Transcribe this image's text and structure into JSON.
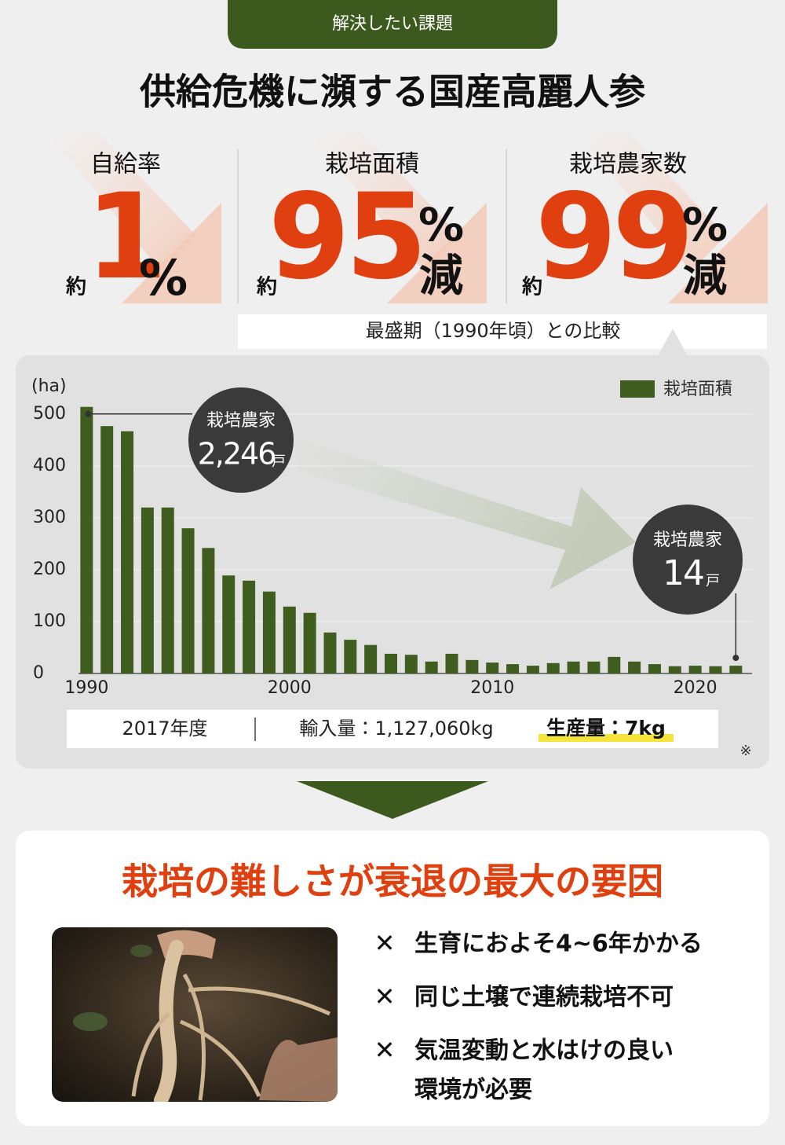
{
  "header": {
    "tab": "解決したい課題",
    "title": "供給危機に瀕する国産高麗人参"
  },
  "stats": [
    {
      "label": "自給率",
      "prefix": "約",
      "number": 1,
      "unit": "%"
    },
    {
      "label": "栽培面積",
      "prefix": "約",
      "number": 95,
      "unit": "%",
      "suffix": "減"
    },
    {
      "label": "栽培農家数",
      "prefix": "約",
      "number": 99,
      "unit": "%",
      "suffix": "減"
    }
  ],
  "stats_note": "最盛期（1990年頃）との比較",
  "chart_data": {
    "type": "bar",
    "y_label": "(ha)",
    "x": [
      1990,
      1991,
      1992,
      1993,
      1994,
      1995,
      1996,
      1997,
      1998,
      1999,
      2000,
      2001,
      2002,
      2003,
      2004,
      2005,
      2006,
      2007,
      2008,
      2009,
      2010,
      2011,
      2012,
      2013,
      2014,
      2015,
      2016,
      2017,
      2018,
      2019,
      2020,
      2021,
      2022
    ],
    "series": [
      {
        "name": "栽培面積",
        "color": "#3f5d1e",
        "values": [
          514,
          477,
          467,
          320,
          320,
          280,
          242,
          189,
          179,
          158,
          129,
          117,
          79,
          65,
          55,
          38,
          36,
          23,
          38,
          26,
          21,
          18,
          15,
          20,
          23,
          23,
          32,
          23,
          18,
          14,
          15,
          14,
          15
        ]
      }
    ],
    "xlim": [
      1989.6,
      2022.8
    ],
    "xticks": [
      1990,
      2000,
      2010,
      2020
    ],
    "ylim": [
      0,
      500
    ],
    "yticks": [
      0,
      100,
      200,
      300,
      400,
      500
    ],
    "grid": true,
    "legend": "top-right",
    "annotations": [
      {
        "label": "栽培農家",
        "value": "2,246",
        "unit": "戸"
      },
      {
        "label": "栽培農家",
        "value": "14",
        "unit": "戸"
      }
    ]
  },
  "trade": {
    "year": "2017年度",
    "import": "輸入量：1,127,060kg",
    "production": "生産量：7kg",
    "note": "※"
  },
  "conclusion": {
    "title": "栽培の難しさが衰退の最大の要因",
    "mark": "✕",
    "items": [
      [
        "生育におよそ4~6年かかる"
      ],
      [
        "同じ土壌で連続栽培不可"
      ],
      [
        "気温変動と水はけの良い",
        "環境が必要"
      ]
    ]
  }
}
